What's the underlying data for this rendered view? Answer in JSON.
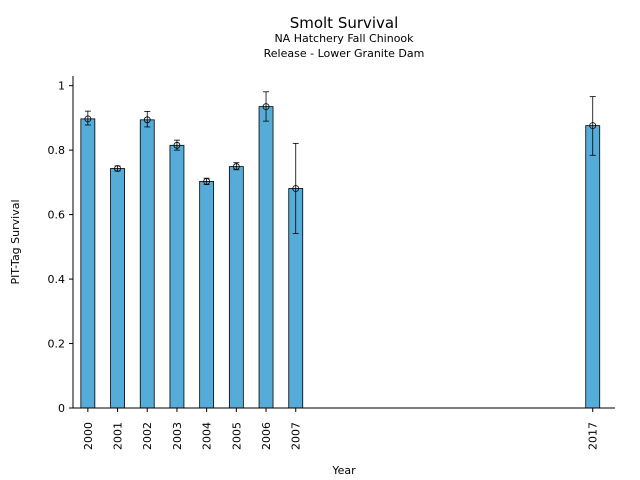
{
  "chart_data": {
    "type": "bar",
    "title": "Smolt Survival",
    "subtitle_lines": [
      "NA Hatchery Fall Chinook",
      "Release - Lower Granite Dam"
    ],
    "xlabel": "Year",
    "ylabel": "PIT-Tag Survival",
    "ylim": [
      0,
      1.03
    ],
    "xlim": [
      1999.5,
      2017.75
    ],
    "yticks": [
      0,
      0.2,
      0.4,
      0.6,
      0.8,
      1
    ],
    "ytick_labels": [
      "0",
      "0.2",
      "0.4",
      "0.6",
      "0.8",
      "1"
    ],
    "categories": [
      "2000",
      "2001",
      "2002",
      "2003",
      "2004",
      "2005",
      "2006",
      "2007",
      "2017"
    ],
    "x": [
      2000,
      2001,
      2002,
      2003,
      2004,
      2005,
      2006,
      2007,
      2017
    ],
    "values": [
      0.897,
      0.743,
      0.894,
      0.815,
      0.703,
      0.749,
      0.935,
      0.681,
      0.876
    ],
    "error_low": [
      0.878,
      0.735,
      0.872,
      0.8,
      0.693,
      0.739,
      0.89,
      0.541,
      0.784
    ],
    "error_high": [
      0.921,
      0.751,
      0.92,
      0.831,
      0.713,
      0.761,
      0.981,
      0.821,
      0.966
    ],
    "bar_color": "#56acd8",
    "grid": false,
    "legend": "none"
  }
}
